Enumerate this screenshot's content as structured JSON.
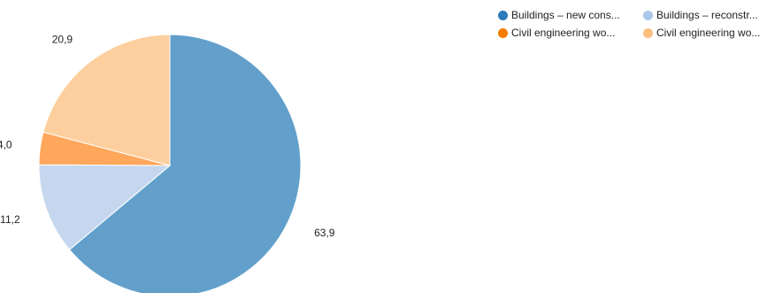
{
  "chart_data": {
    "type": "pie",
    "values": [
      63.9,
      11.2,
      4.0,
      20.9
    ],
    "value_labels": [
      "63,9",
      "11,2",
      "4,0",
      "20,9"
    ],
    "series": [
      {
        "name": "Buildings – new cons...",
        "value": 63.9,
        "color": "#62a0cb",
        "legend_color": "#2b7bb9"
      },
      {
        "name": "Buildings – reconstr...",
        "value": 11.2,
        "color": "#c5d7ee",
        "legend_color": "#a9c7e8"
      },
      {
        "name": "Civil engineering wo...",
        "value": 4.0,
        "color": "#ffa75b",
        "legend_color": "#f57c00"
      },
      {
        "name": "Civil engineering wo...",
        "value": 20.9,
        "color": "#fecf9e",
        "legend_color": "#fdbf7e"
      }
    ],
    "start_angle": "12 o'clock",
    "direction": "clockwise",
    "legend_position": "top-right"
  }
}
